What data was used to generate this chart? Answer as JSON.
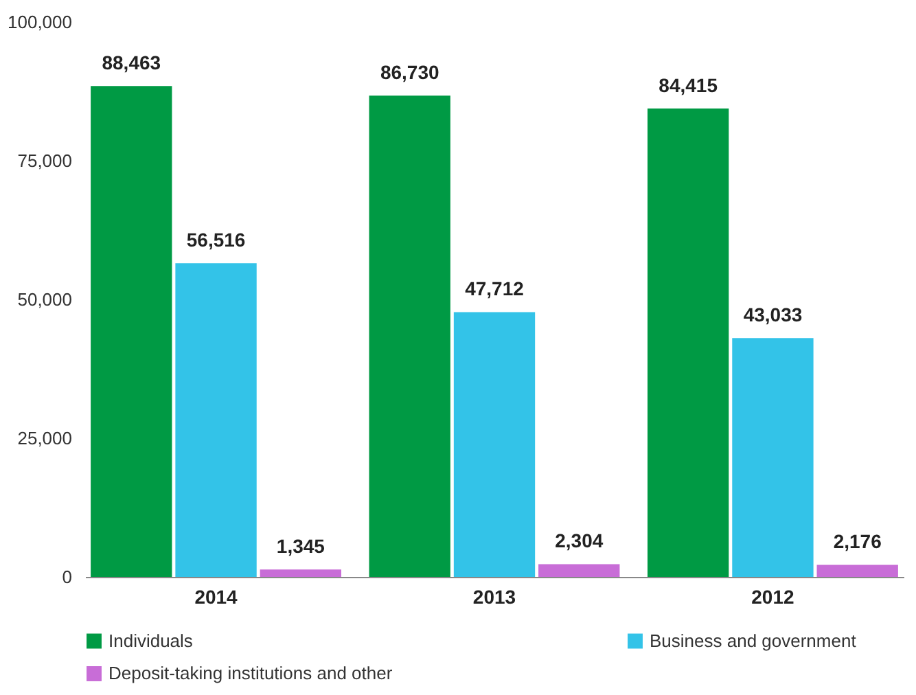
{
  "chart_data": {
    "type": "bar",
    "categories": [
      "2014",
      "2013",
      "2012"
    ],
    "series": [
      {
        "name": "Individuals",
        "color": "#009a44",
        "values": [
          88463,
          86730,
          84415
        ],
        "value_labels": [
          "88,463",
          "86,730",
          "84,415"
        ]
      },
      {
        "name": "Business and government",
        "color": "#33c3e8",
        "values": [
          56516,
          47712,
          43033
        ],
        "value_labels": [
          "56,516",
          "47,712",
          "43,033"
        ]
      },
      {
        "name": "Deposit-taking institutions and other",
        "color": "#c86dd7",
        "values": [
          1345,
          2304,
          2176
        ],
        "value_labels": [
          "1,345",
          "2,304",
          "2,176"
        ]
      }
    ],
    "ylim": [
      0,
      100000
    ],
    "yticks": [
      0,
      {
        "value": 25000,
        "label": "25,000"
      },
      {
        "value": 50000,
        "label": "50,000"
      },
      {
        "value": 75000,
        "label": "75,000"
      },
      {
        "value": 100000,
        "label": "100,000"
      }
    ],
    "grid": false,
    "legend": "bottom"
  }
}
